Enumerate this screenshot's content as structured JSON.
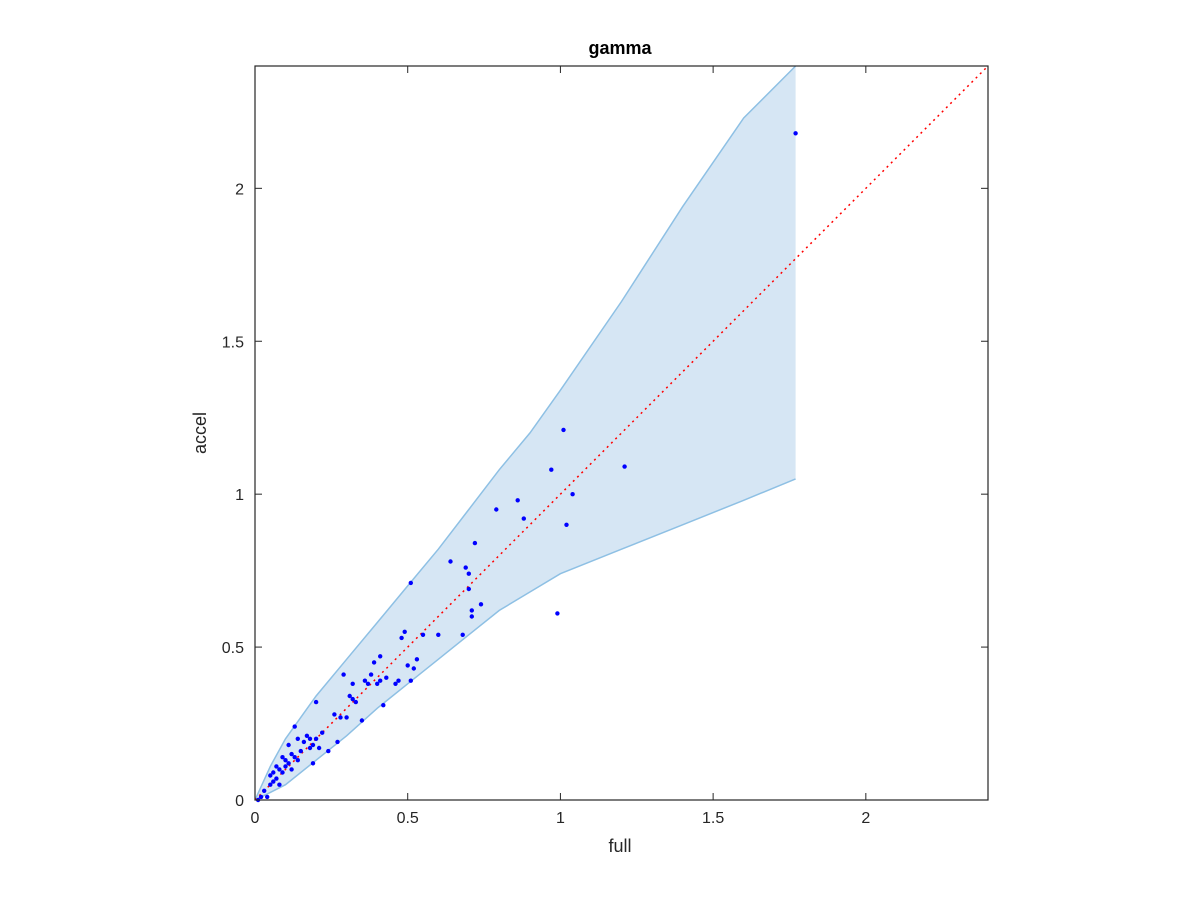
{
  "chart_data": {
    "type": "scatter",
    "title": "gamma",
    "xlabel": "full",
    "ylabel": "accel",
    "xlim": [
      0,
      2.4
    ],
    "ylim": [
      0,
      2.4
    ],
    "xticks": [
      0,
      0.5,
      1,
      1.5,
      2
    ],
    "yticks": [
      0,
      0.5,
      1,
      1.5,
      2
    ],
    "xtick_labels": [
      "0",
      "0.5",
      "1",
      "1.5",
      "2"
    ],
    "ytick_labels": [
      "0",
      "0.5",
      "1",
      "1.5",
      "2"
    ],
    "grid": false,
    "colors": {
      "points": "#0000ff",
      "band_fill": "#d6e6f4",
      "band_edge": "#8ec0e4",
      "reference_line": "#ff0000",
      "axes": "#262626"
    },
    "reference_line": {
      "x": [
        0,
        2.4
      ],
      "y": [
        0,
        2.4
      ],
      "style": "dotted"
    },
    "band": {
      "x": [
        0,
        0.05,
        0.1,
        0.2,
        0.3,
        0.4,
        0.5,
        0.6,
        0.7,
        0.8,
        0.9,
        1.0,
        1.2,
        1.4,
        1.6,
        1.77
      ],
      "upper": [
        0,
        0.11,
        0.2,
        0.34,
        0.46,
        0.58,
        0.7,
        0.82,
        0.95,
        1.08,
        1.2,
        1.34,
        1.63,
        1.94,
        2.23,
        2.4
      ],
      "lower": [
        0,
        0.025,
        0.05,
        0.13,
        0.21,
        0.3,
        0.38,
        0.46,
        0.54,
        0.62,
        0.68,
        0.74,
        0.82,
        0.9,
        0.98,
        1.05
      ]
    },
    "series": [
      {
        "x": [
          0.01,
          0.02,
          0.03,
          0.04,
          0.05,
          0.05,
          0.06,
          0.06,
          0.07,
          0.07,
          0.08,
          0.08,
          0.09,
          0.09,
          0.1,
          0.1,
          0.11,
          0.11,
          0.12,
          0.12,
          0.13,
          0.13,
          0.14,
          0.14,
          0.15,
          0.16,
          0.17,
          0.18,
          0.18,
          0.19,
          0.19,
          0.2,
          0.2,
          0.21,
          0.22,
          0.24,
          0.26,
          0.27,
          0.28,
          0.29,
          0.3,
          0.31,
          0.32,
          0.32,
          0.33,
          0.35,
          0.36,
          0.37,
          0.38,
          0.39,
          0.4,
          0.41,
          0.41,
          0.42,
          0.43,
          0.46,
          0.47,
          0.48,
          0.49,
          0.5,
          0.51,
          0.51,
          0.52,
          0.53,
          0.55,
          0.6,
          0.64,
          0.68,
          0.69,
          0.7,
          0.7,
          0.71,
          0.71,
          0.72,
          0.74,
          0.79,
          0.86,
          0.88,
          0.97,
          0.99,
          1.01,
          1.02,
          1.04,
          1.21,
          1.77
        ],
        "y": [
          0.0,
          0.01,
          0.03,
          0.01,
          0.05,
          0.08,
          0.06,
          0.09,
          0.07,
          0.11,
          0.05,
          0.1,
          0.14,
          0.09,
          0.13,
          0.11,
          0.18,
          0.12,
          0.15,
          0.1,
          0.14,
          0.24,
          0.13,
          0.2,
          0.16,
          0.19,
          0.21,
          0.17,
          0.2,
          0.18,
          0.12,
          0.32,
          0.2,
          0.17,
          0.22,
          0.16,
          0.28,
          0.19,
          0.27,
          0.41,
          0.27,
          0.34,
          0.33,
          0.38,
          0.32,
          0.26,
          0.39,
          0.38,
          0.41,
          0.45,
          0.38,
          0.47,
          0.39,
          0.31,
          0.4,
          0.38,
          0.39,
          0.53,
          0.55,
          0.44,
          0.71,
          0.39,
          0.43,
          0.46,
          0.54,
          0.54,
          0.78,
          0.54,
          0.76,
          0.74,
          0.69,
          0.62,
          0.6,
          0.84,
          0.64,
          0.95,
          0.98,
          0.92,
          1.08,
          0.61,
          1.21,
          0.9,
          1.0,
          1.09,
          2.18
        ]
      }
    ]
  }
}
